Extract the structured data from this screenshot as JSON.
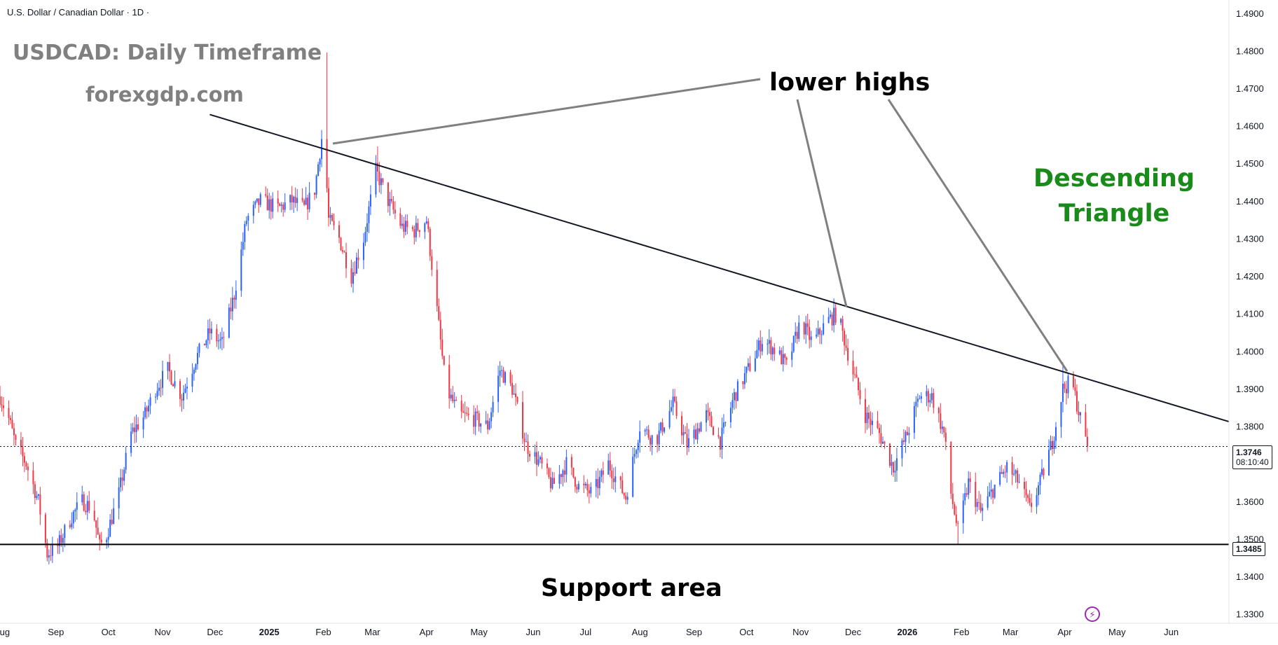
{
  "symbol_title": "U.S. Dollar / Canadian Dollar · 1D ·",
  "annotations": {
    "headline": "USDCAD: Daily Timeframe",
    "watermark": "forexgdp.com",
    "lower_highs": "lower highs",
    "pattern_name": "Descending Triangle",
    "support_label": "Support area"
  },
  "price_tags": {
    "last_price": "1.3746",
    "countdown": "08:10:40",
    "support": "1.3485"
  },
  "colors": {
    "up": "#2962ff",
    "down": "#f23645",
    "pattern": "#1a8a1a",
    "annotation_gray": "#808080",
    "line": "#131722"
  },
  "icons": {
    "alert": "lightning-bolt-icon"
  },
  "chart_data": {
    "type": "candlestick",
    "title": "U.S. Dollar / Canadian Dollar · 1D ·",
    "y_axis_ticks": [
      "1.4900",
      "1.4800",
      "1.4700",
      "1.4600",
      "1.4500",
      "1.4400",
      "1.4300",
      "1.4200",
      "1.4100",
      "1.4000",
      "1.3900",
      "1.3800",
      "1.3700",
      "1.3600",
      "1.3500",
      "1.3400",
      "1.3300"
    ],
    "ylim": [
      1.3275,
      1.4935
    ],
    "x_axis_ticks": [
      {
        "label": "Aug",
        "date": "2024-08-01"
      },
      {
        "label": "Sep",
        "date": "2024-09-01"
      },
      {
        "label": "Oct",
        "date": "2024-10-01"
      },
      {
        "label": "Nov",
        "date": "2024-11-01"
      },
      {
        "label": "Dec",
        "date": "2024-12-01"
      },
      {
        "label": "2025",
        "date": "2025-01-01",
        "bold": true
      },
      {
        "label": "Feb",
        "date": "2025-02-01"
      },
      {
        "label": "Mar",
        "date": "2025-03-01"
      },
      {
        "label": "Apr",
        "date": "2025-04-01"
      },
      {
        "label": "May",
        "date": "2025-05-01"
      },
      {
        "label": "Jun",
        "date": "2025-06-01"
      },
      {
        "label": "Jul",
        "date": "2025-07-01"
      },
      {
        "label": "Aug",
        "date": "2025-08-01"
      },
      {
        "label": "Sep",
        "date": "2025-09-01"
      },
      {
        "label": "Oct",
        "date": "2025-10-01"
      },
      {
        "label": "Nov",
        "date": "2025-11-01"
      },
      {
        "label": "Dec",
        "date": "2025-12-01"
      },
      {
        "label": "2026",
        "date": "2026-01-01",
        "bold": true
      },
      {
        "label": "Feb",
        "date": "2026-02-01"
      },
      {
        "label": "Mar",
        "date": "2026-03-01"
      },
      {
        "label": "Apr",
        "date": "2026-04-01"
      },
      {
        "label": "May",
        "date": "2026-05-01"
      },
      {
        "label": "Jun",
        "date": "2026-06-01"
      }
    ],
    "x_range": [
      "2024-07-31",
      "2026-07-04"
    ],
    "close_path": [
      [
        "2024-07-31",
        1.388
      ],
      [
        "2024-08-05",
        1.382
      ],
      [
        "2024-08-09",
        1.375
      ],
      [
        "2024-08-15",
        1.37
      ],
      [
        "2024-08-22",
        1.36
      ],
      [
        "2024-08-27",
        1.346
      ],
      [
        "2024-09-02",
        1.348
      ],
      [
        "2024-09-10",
        1.356
      ],
      [
        "2024-09-16",
        1.36
      ],
      [
        "2024-09-22",
        1.358
      ],
      [
        "2024-09-26",
        1.348
      ],
      [
        "2024-09-30",
        1.351
      ],
      [
        "2024-10-07",
        1.362
      ],
      [
        "2024-10-14",
        1.378
      ],
      [
        "2024-10-22",
        1.383
      ],
      [
        "2024-10-28",
        1.39
      ],
      [
        "2024-11-04",
        1.395
      ],
      [
        "2024-11-12",
        1.388
      ],
      [
        "2024-11-20",
        1.398
      ],
      [
        "2024-11-28",
        1.405
      ],
      [
        "2024-12-05",
        1.402
      ],
      [
        "2024-12-12",
        1.415
      ],
      [
        "2024-12-19",
        1.435
      ],
      [
        "2024-12-27",
        1.44
      ],
      [
        "2025-01-06",
        1.438
      ],
      [
        "2025-01-14",
        1.44
      ],
      [
        "2025-01-21",
        1.438
      ],
      [
        "2025-01-27",
        1.443
      ],
      [
        "2025-02-01",
        1.46
      ],
      [
        "2025-02-04",
        1.435
      ],
      [
        "2025-02-10",
        1.43
      ],
      [
        "2025-02-17",
        1.42
      ],
      [
        "2025-02-24",
        1.43
      ],
      [
        "2025-03-03",
        1.448
      ],
      [
        "2025-03-10",
        1.44
      ],
      [
        "2025-03-18",
        1.433
      ],
      [
        "2025-03-25",
        1.432
      ],
      [
        "2025-04-01",
        1.435
      ],
      [
        "2025-04-06",
        1.415
      ],
      [
        "2025-04-12",
        1.39
      ],
      [
        "2025-04-20",
        1.383
      ],
      [
        "2025-04-28",
        1.382
      ],
      [
        "2025-05-06",
        1.38
      ],
      [
        "2025-05-13",
        1.395
      ],
      [
        "2025-05-20",
        1.39
      ],
      [
        "2025-05-28",
        1.375
      ],
      [
        "2025-06-05",
        1.37
      ],
      [
        "2025-06-12",
        1.364
      ],
      [
        "2025-06-20",
        1.37
      ],
      [
        "2025-06-27",
        1.364
      ],
      [
        "2025-07-05",
        1.362
      ],
      [
        "2025-07-14",
        1.37
      ],
      [
        "2025-07-24",
        1.361
      ],
      [
        "2025-08-01",
        1.38
      ],
      [
        "2025-08-10",
        1.376
      ],
      [
        "2025-08-20",
        1.386
      ],
      [
        "2025-08-28",
        1.375
      ],
      [
        "2025-09-08",
        1.383
      ],
      [
        "2025-09-16",
        1.376
      ],
      [
        "2025-09-24",
        1.388
      ],
      [
        "2025-10-03",
        1.396
      ],
      [
        "2025-10-10",
        1.403
      ],
      [
        "2025-10-18",
        1.4
      ],
      [
        "2025-10-24",
        1.396
      ],
      [
        "2025-11-01",
        1.408
      ],
      [
        "2025-11-08",
        1.402
      ],
      [
        "2025-11-16",
        1.408
      ],
      [
        "2025-11-22",
        1.41
      ],
      [
        "2025-11-30",
        1.396
      ],
      [
        "2025-12-08",
        1.383
      ],
      [
        "2025-12-16",
        1.378
      ],
      [
        "2025-12-24",
        1.369
      ],
      [
        "2026-01-01",
        1.378
      ],
      [
        "2026-01-08",
        1.388
      ],
      [
        "2026-01-15",
        1.388
      ],
      [
        "2026-01-22",
        1.378
      ],
      [
        "2026-01-26",
        1.362
      ],
      [
        "2026-01-30",
        1.352
      ],
      [
        "2026-02-05",
        1.365
      ],
      [
        "2026-02-12",
        1.357
      ],
      [
        "2026-02-20",
        1.364
      ],
      [
        "2026-02-27",
        1.369
      ],
      [
        "2026-03-06",
        1.365
      ],
      [
        "2026-03-12",
        1.358
      ],
      [
        "2026-03-18",
        1.365
      ],
      [
        "2026-03-25",
        1.376
      ],
      [
        "2026-03-31",
        1.39
      ],
      [
        "2026-04-05",
        1.392
      ],
      [
        "2026-04-10",
        1.382
      ],
      [
        "2026-04-14",
        1.3746
      ]
    ],
    "key_highs": [
      {
        "date": "2025-02-03",
        "price": 1.4795
      },
      {
        "date": "2025-03-04",
        "price": 1.4545
      },
      {
        "date": "2025-11-20",
        "price": 1.414
      },
      {
        "date": "2026-03-31",
        "price": 1.397
      }
    ],
    "key_lows": [
      {
        "date": "2024-08-27",
        "price": 1.344
      },
      {
        "date": "2024-09-28",
        "price": 1.3425
      },
      {
        "date": "2026-01-30",
        "price": 1.3485
      }
    ],
    "trendline": {
      "from": {
        "date": "2024-11-28",
        "price": 1.463
      },
      "to": {
        "date": "2026-07-04",
        "price": 1.3812
      }
    },
    "support_level": 1.3485,
    "last_price": 1.3746,
    "grid": false,
    "legend": "none"
  }
}
